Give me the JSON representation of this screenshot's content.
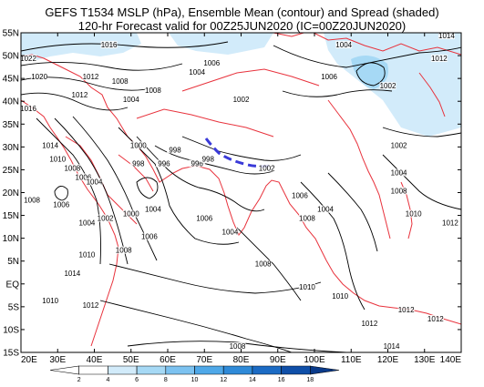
{
  "title": {
    "line1": "GEFS T1534 MSLP (hPa), Ensemble Mean (contour) and Spread (shaded)",
    "line2": "120-hr Forecast valid for 00Z25JUN2020 (IC=00Z20JUN2020)"
  },
  "map": {
    "lon_range": [
      20,
      140
    ],
    "lat_range": [
      -15,
      55
    ],
    "lon_ticks": [
      "20E",
      "30E",
      "40E",
      "50E",
      "60E",
      "70E",
      "80E",
      "90E",
      "100E",
      "110E",
      "120E",
      "130E",
      "140E"
    ],
    "lat_ticks": [
      "55N",
      "50N",
      "45N",
      "40N",
      "35N",
      "30N",
      "25N",
      "20N",
      "15N",
      "10N",
      "5N",
      "EQ",
      "5S",
      "10S",
      "15S"
    ],
    "colors": {
      "coast": "#e8323c",
      "contour": "#000000",
      "highlight": "#3a3ad8"
    }
  },
  "contour_labels": [
    {
      "text": "1016",
      "lon": 44,
      "lat": 52
    },
    {
      "text": "1022",
      "lon": 22,
      "lat": 49
    },
    {
      "text": "1020",
      "lon": 25,
      "lat": 45
    },
    {
      "text": "1012",
      "lon": 39,
      "lat": 45
    },
    {
      "text": "1008",
      "lon": 47,
      "lat": 44
    },
    {
      "text": "1012",
      "lon": 36,
      "lat": 41
    },
    {
      "text": "1004",
      "lon": 50,
      "lat": 40
    },
    {
      "text": "1008",
      "lon": 56,
      "lat": 42
    },
    {
      "text": "1000",
      "lon": 52,
      "lat": 30
    },
    {
      "text": "998",
      "lon": 62,
      "lat": 29
    },
    {
      "text": "998",
      "lon": 52,
      "lat": 26
    },
    {
      "text": "996",
      "lon": 59,
      "lat": 26
    },
    {
      "text": "996",
      "lon": 68,
      "lat": 26
    },
    {
      "text": "998",
      "lon": 71,
      "lat": 27
    },
    {
      "text": "1002",
      "lon": 87,
      "lat": 25
    },
    {
      "text": "1004",
      "lon": 68,
      "lat": 46
    },
    {
      "text": "1006",
      "lon": 72,
      "lat": 48
    },
    {
      "text": "1002",
      "lon": 80,
      "lat": 40
    },
    {
      "text": "1004",
      "lon": 108,
      "lat": 52
    },
    {
      "text": "1006",
      "lon": 104,
      "lat": 45
    },
    {
      "text": "1002",
      "lon": 120,
      "lat": 43
    },
    {
      "text": "1014",
      "lon": 136,
      "lat": 54
    },
    {
      "text": "1012",
      "lon": 134,
      "lat": 49
    },
    {
      "text": "1016",
      "lon": 22,
      "lat": 38
    },
    {
      "text": "1014",
      "lon": 28,
      "lat": 30
    },
    {
      "text": "1010",
      "lon": 30,
      "lat": 27
    },
    {
      "text": "1008",
      "lon": 34,
      "lat": 25
    },
    {
      "text": "1006",
      "lon": 37,
      "lat": 23
    },
    {
      "text": "1004",
      "lon": 40,
      "lat": 22
    },
    {
      "text": "1008",
      "lon": 23,
      "lat": 18
    },
    {
      "text": "1006",
      "lon": 31,
      "lat": 17
    },
    {
      "text": "1004",
      "lon": 38,
      "lat": 13
    },
    {
      "text": "1002",
      "lon": 43,
      "lat": 14
    },
    {
      "text": "1000",
      "lon": 50,
      "lat": 15
    },
    {
      "text": "1004",
      "lon": 56,
      "lat": 16
    },
    {
      "text": "1006",
      "lon": 55,
      "lat": 10
    },
    {
      "text": "1008",
      "lon": 48,
      "lat": 7
    },
    {
      "text": "1010",
      "lon": 38,
      "lat": 6
    },
    {
      "text": "1014",
      "lon": 34,
      "lat": 2
    },
    {
      "text": "1010",
      "lon": 28,
      "lat": -4
    },
    {
      "text": "1012",
      "lon": 39,
      "lat": -5
    },
    {
      "text": "1008",
      "lon": 86,
      "lat": 4
    },
    {
      "text": "1004",
      "lon": 77,
      "lat": 11
    },
    {
      "text": "1006",
      "lon": 70,
      "lat": 14
    },
    {
      "text": "1006",
      "lon": 96,
      "lat": 19
    },
    {
      "text": "1008",
      "lon": 98,
      "lat": 14
    },
    {
      "text": "1004",
      "lon": 103,
      "lat": 16
    },
    {
      "text": "1002",
      "lon": 123,
      "lat": 30
    },
    {
      "text": "1004",
      "lon": 123,
      "lat": 24
    },
    {
      "text": "1008",
      "lon": 123,
      "lat": 20
    },
    {
      "text": "1010",
      "lon": 127,
      "lat": 15
    },
    {
      "text": "1012",
      "lon": 137,
      "lat": 13
    },
    {
      "text": "1010",
      "lon": 107,
      "lat": -3
    },
    {
      "text": "1010",
      "lon": 98,
      "lat": -1
    },
    {
      "text": "1012",
      "lon": 125,
      "lat": -6
    },
    {
      "text": "1012",
      "lon": 115,
      "lat": -9
    },
    {
      "text": "1012",
      "lon": 133,
      "lat": -8
    },
    {
      "text": "1008",
      "lon": 79,
      "lat": -14
    },
    {
      "text": "1014",
      "lon": 121,
      "lat": -14
    }
  ],
  "colorbar": {
    "ticks": [
      "2",
      "4",
      "6",
      "8",
      "10",
      "12",
      "14",
      "16",
      "18"
    ],
    "colors": [
      "#ffffff",
      "#ffffff",
      "#d2ebfa",
      "#a6d9f5",
      "#7cc2f0",
      "#4fa8e8",
      "#2f8ad8",
      "#1c6bc4",
      "#0f4fa8",
      "#0a3a8a"
    ]
  }
}
